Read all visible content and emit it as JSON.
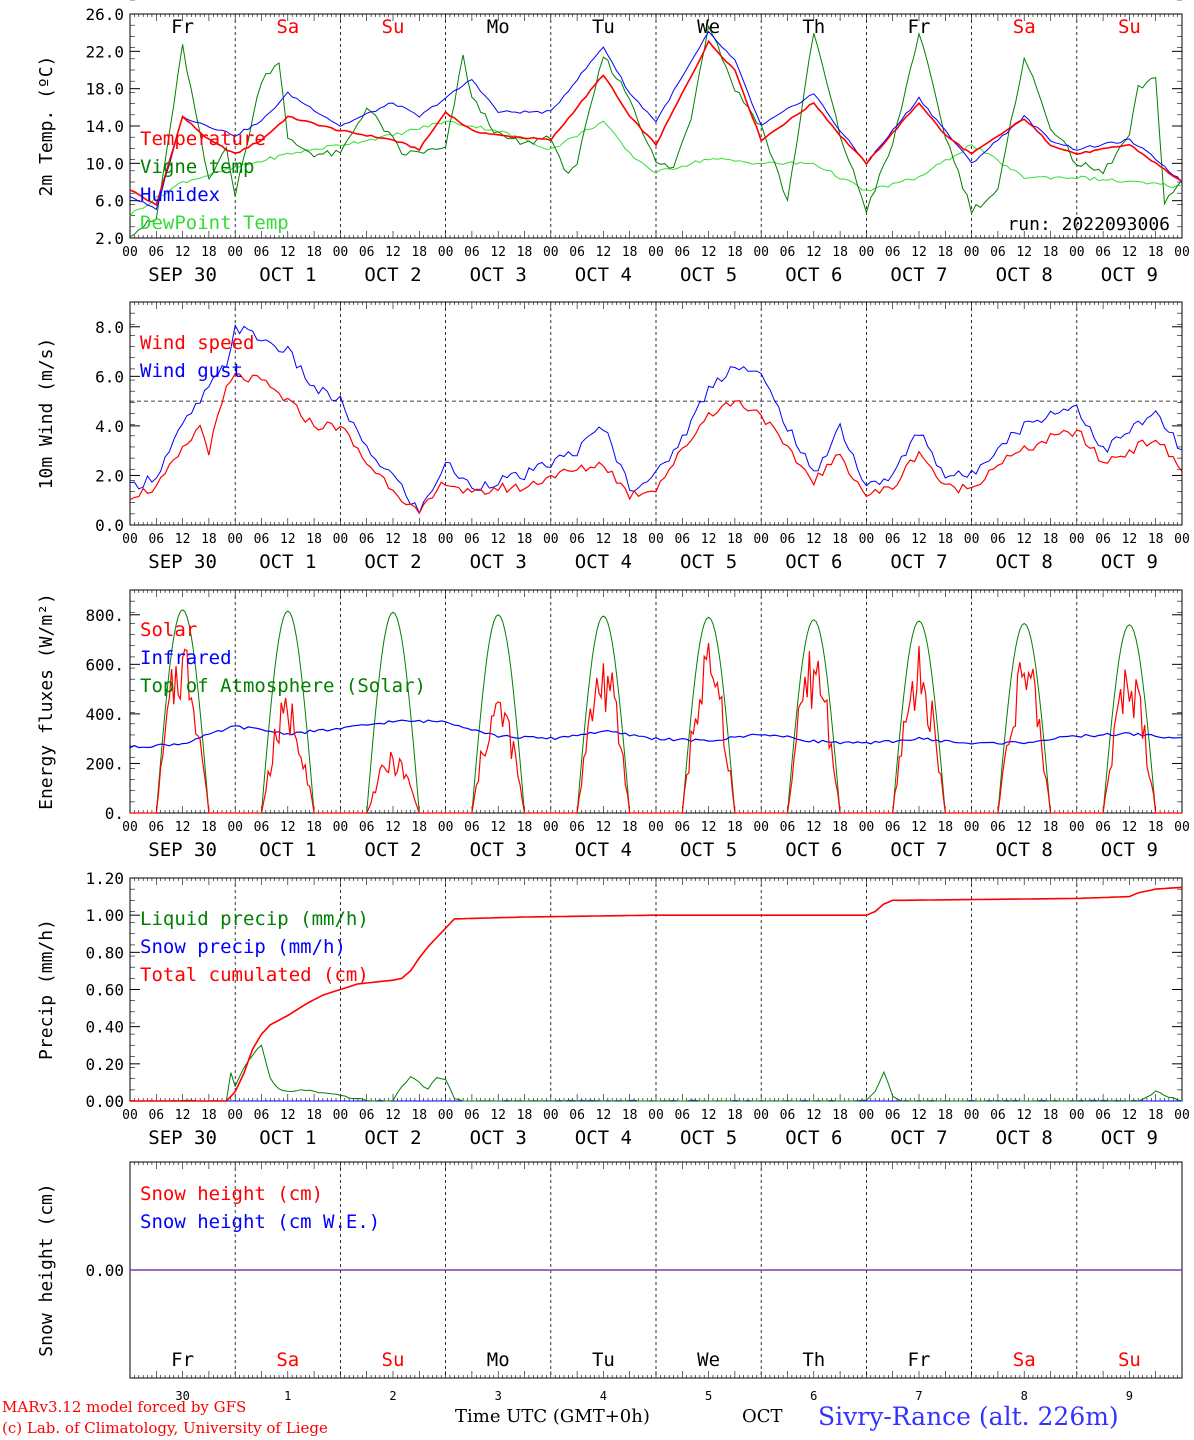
{
  "footer": {
    "model_line": "MARv3.12 model forced by GFS",
    "lab_line": "(c) Lab. of Climatology, University of Liege",
    "time_label": "Time UTC (GMT+0h)",
    "month_label": "OCT",
    "location": "Sivry-Rance (alt. 226m)"
  },
  "colors": {
    "red": "#ff0000",
    "green": "#008000",
    "blue": "#0000ff",
    "lightgreen": "#33dd33",
    "purple": "#7f3f9f",
    "black": "#000000"
  },
  "chart_data": [
    {
      "type": "line",
      "id": "temp",
      "ylabel": "2m Temp. (ºC)",
      "ylim": [
        2,
        26
      ],
      "yticks": [
        "2.0",
        "6.0",
        "10.0",
        "14.0",
        "18.0",
        "22.0",
        "26.0"
      ],
      "x_unit": "hours since Sep 30 00 UTC",
      "xlim": [
        0,
        240
      ],
      "x_hour_ticks": [
        "00",
        "06",
        "12",
        "18"
      ],
      "date_labels": [
        "SEP 30",
        "OCT  1",
        "OCT  2",
        "OCT  3",
        "OCT  4",
        "OCT  5",
        "OCT  6",
        "OCT  7",
        "OCT  8",
        "OCT  9"
      ],
      "weekdays": [
        "Fr",
        "Sa",
        "Su",
        "Mo",
        "Tu",
        "We",
        "Th",
        "Fr",
        "Sa",
        "Su"
      ],
      "weekday_colors": [
        "black",
        "red",
        "red",
        "black",
        "black",
        "black",
        "black",
        "black",
        "red",
        "red"
      ],
      "run_label": "run: 2022093006",
      "series": [
        {
          "name": "Temperature",
          "color": "red",
          "x": [
            0,
            6,
            12,
            18,
            24,
            30,
            36,
            48,
            60,
            66,
            72,
            78,
            84,
            96,
            108,
            114,
            120,
            132,
            138,
            144,
            156,
            162,
            168,
            180,
            186,
            192,
            204,
            210,
            216,
            228,
            234,
            240
          ],
          "y": [
            7.2,
            5.5,
            15.0,
            12.5,
            11.0,
            12.5,
            15.0,
            13.5,
            12.5,
            11.5,
            15.5,
            13.5,
            13.0,
            12.5,
            19.5,
            15.0,
            12.0,
            23.0,
            20.0,
            12.5,
            16.5,
            13.0,
            10.0,
            16.5,
            13.0,
            11.0,
            14.8,
            12.0,
            11.0,
            12.0,
            10.0,
            8.0
          ]
        },
        {
          "name": "Vigne temp",
          "color": "green",
          "x": [
            0,
            6,
            12,
            18,
            22,
            24,
            30,
            34,
            36,
            42,
            48,
            54,
            60,
            62,
            72,
            76,
            78,
            84,
            90,
            96,
            99,
            102,
            108,
            114,
            120,
            124,
            128,
            132,
            138,
            144,
            150,
            156,
            162,
            168,
            174,
            180,
            186,
            192,
            198,
            204,
            210,
            216,
            222,
            228,
            230,
            234,
            236,
            240
          ],
          "y": [
            2.5,
            4.0,
            22.5,
            8.0,
            12.0,
            6.5,
            19.0,
            21.0,
            12.5,
            11.0,
            11.0,
            16.0,
            12.5,
            11.0,
            11.5,
            21.5,
            17.0,
            13.0,
            12.0,
            13.0,
            9.0,
            10.0,
            21.5,
            17.0,
            10.0,
            9.5,
            15.0,
            25.0,
            18.0,
            14.0,
            6.0,
            24.0,
            13.0,
            5.0,
            12.0,
            24.0,
            13.0,
            5.0,
            7.0,
            21.5,
            14.0,
            10.0,
            9.0,
            13.0,
            18.0,
            19.0,
            6.0,
            8.0
          ]
        },
        {
          "name": "Humidex",
          "color": "blue",
          "x": [
            0,
            6,
            12,
            18,
            24,
            30,
            36,
            48,
            60,
            66,
            72,
            78,
            84,
            96,
            108,
            114,
            120,
            132,
            138,
            144,
            156,
            162,
            168,
            180,
            186,
            192,
            204,
            210,
            216,
            228,
            234,
            240
          ],
          "y": [
            6.5,
            5.0,
            15.0,
            14.0,
            13.0,
            14.5,
            17.5,
            14.0,
            16.5,
            15.0,
            17.0,
            19.0,
            15.5,
            15.5,
            22.5,
            17.5,
            14.5,
            24.0,
            21.0,
            14.0,
            17.5,
            13.5,
            10.0,
            17.0,
            13.5,
            10.0,
            15.0,
            12.5,
            11.5,
            12.5,
            10.5,
            8.0
          ]
        },
        {
          "name": "DewPoint Temp",
          "color": "lightgreen",
          "x": [
            0,
            12,
            24,
            36,
            48,
            60,
            72,
            84,
            96,
            108,
            114,
            120,
            132,
            144,
            156,
            168,
            180,
            192,
            204,
            216,
            228,
            240
          ],
          "y": [
            4.5,
            8.0,
            9.5,
            11.0,
            12.0,
            13.0,
            14.5,
            13.5,
            11.5,
            14.5,
            11.0,
            9.0,
            10.5,
            10.0,
            10.0,
            7.0,
            8.5,
            12.0,
            8.5,
            8.5,
            8.0,
            7.5
          ]
        }
      ],
      "legend_placement": "left"
    },
    {
      "type": "line",
      "id": "wind",
      "ylabel": "10m Wind (m/s)",
      "ylim": [
        0,
        9
      ],
      "yticks": [
        "0.0",
        "2.0",
        "4.0",
        "6.0",
        "8.0"
      ],
      "reference_line": 5,
      "xlim": [
        0,
        240
      ],
      "series": [
        {
          "name": "Wind speed",
          "color": "red",
          "x": [
            0,
            6,
            12,
            16,
            18,
            22,
            24,
            30,
            36,
            42,
            48,
            54,
            60,
            66,
            72,
            78,
            84,
            90,
            96,
            102,
            108,
            114,
            120,
            126,
            132,
            138,
            144,
            150,
            156,
            162,
            168,
            174,
            180,
            186,
            192,
            198,
            204,
            210,
            216,
            222,
            228,
            234,
            240
          ],
          "y": [
            1.2,
            1.5,
            3.0,
            4.0,
            3.0,
            5.5,
            6.0,
            5.8,
            5.0,
            4.0,
            4.0,
            2.5,
            1.5,
            0.4,
            1.8,
            1.2,
            1.5,
            1.5,
            2.0,
            2.2,
            2.5,
            1.2,
            1.5,
            3.0,
            4.5,
            5.0,
            4.5,
            3.0,
            1.8,
            2.8,
            1.2,
            1.5,
            3.0,
            1.5,
            1.5,
            2.5,
            3.0,
            3.5,
            3.8,
            2.5,
            3.0,
            3.5,
            2.2
          ]
        },
        {
          "name": "Wind gust",
          "color": "blue",
          "x": [
            0,
            6,
            12,
            18,
            22,
            24,
            30,
            36,
            42,
            48,
            54,
            60,
            66,
            72,
            78,
            84,
            90,
            96,
            102,
            108,
            114,
            120,
            126,
            132,
            138,
            144,
            150,
            156,
            162,
            168,
            174,
            180,
            186,
            192,
            198,
            204,
            210,
            216,
            222,
            228,
            234,
            240
          ],
          "y": [
            1.5,
            2.0,
            4.0,
            5.5,
            6.5,
            8.0,
            7.5,
            7.0,
            5.5,
            5.0,
            3.0,
            2.0,
            0.5,
            2.5,
            1.5,
            1.8,
            2.0,
            2.5,
            3.0,
            4.0,
            1.5,
            2.0,
            3.5,
            5.5,
            6.5,
            6.0,
            4.0,
            2.0,
            4.0,
            1.5,
            2.0,
            3.8,
            2.0,
            2.0,
            3.2,
            4.0,
            4.5,
            4.8,
            3.0,
            3.8,
            4.5,
            3.0
          ]
        }
      ],
      "legend_placement": "left"
    },
    {
      "type": "line",
      "id": "energy",
      "ylabel": "Energy fluxes (W/m²)",
      "ylim": [
        0,
        900
      ],
      "yticks": [
        "0.",
        "200.",
        "400.",
        "600.",
        "800."
      ],
      "xlim": [
        0,
        240
      ],
      "series": [
        {
          "name": "Solar",
          "color": "red",
          "day_peaks": [
            590,
            390,
            200,
            400,
            530,
            550,
            555,
            540,
            540,
            500
          ]
        },
        {
          "name": "Infrared",
          "color": "blue",
          "x": [
            0,
            12,
            24,
            36,
            48,
            60,
            72,
            84,
            96,
            108,
            120,
            132,
            144,
            156,
            168,
            180,
            192,
            204,
            216,
            228,
            240
          ],
          "y": [
            265,
            280,
            350,
            320,
            340,
            370,
            370,
            310,
            300,
            330,
            300,
            290,
            320,
            290,
            280,
            300,
            280,
            285,
            310,
            320,
            300
          ]
        },
        {
          "name": "Top of Atmosphere (Solar)",
          "color": "green",
          "day_peaks": [
            820,
            815,
            810,
            800,
            795,
            790,
            780,
            775,
            765,
            760
          ]
        }
      ],
      "legend_placement": "left"
    },
    {
      "type": "line",
      "id": "precip",
      "ylabel": "Precip (mm/h)",
      "ylim": [
        0,
        1.2
      ],
      "yticks": [
        "0.00",
        "0.20",
        "0.40",
        "0.60",
        "0.80",
        "1.00",
        "1.20"
      ],
      "xlim": [
        0,
        240
      ],
      "series": [
        {
          "name": "Liquid precip (mm/h)",
          "color": "green",
          "x": [
            0,
            22,
            23,
            24,
            26,
            28,
            30,
            32,
            34,
            36,
            40,
            44,
            48,
            52,
            56,
            60,
            62,
            64,
            66,
            68,
            70,
            72,
            74,
            76,
            78,
            90,
            160,
            168,
            170,
            172,
            174,
            176,
            178,
            180,
            220,
            230,
            232,
            234,
            236,
            240
          ],
          "y": [
            0,
            0,
            0.15,
            0.08,
            0.18,
            0.25,
            0.3,
            0.12,
            0.06,
            0.05,
            0.06,
            0.04,
            0.03,
            0.01,
            0,
            0,
            0.08,
            0.13,
            0.1,
            0.06,
            0.13,
            0.12,
            0.01,
            0,
            0,
            0,
            0,
            0,
            0.05,
            0.16,
            0.03,
            0,
            0,
            0,
            0,
            0,
            0.02,
            0.05,
            0.03,
            0
          ]
        },
        {
          "name": "Snow precip (mm/h)",
          "color": "blue",
          "x": [
            0,
            240
          ],
          "y": [
            0,
            0
          ]
        },
        {
          "name": "Total cumulated (cm)",
          "color": "red",
          "x": [
            0,
            22,
            24,
            26,
            28,
            30,
            32,
            36,
            40,
            44,
            48,
            52,
            56,
            60,
            62,
            64,
            66,
            68,
            70,
            72,
            74,
            90,
            120,
            168,
            170,
            172,
            174,
            176,
            216,
            228,
            230,
            234,
            240
          ],
          "y": [
            0,
            0,
            0.05,
            0.15,
            0.28,
            0.36,
            0.41,
            0.46,
            0.52,
            0.57,
            0.6,
            0.63,
            0.64,
            0.65,
            0.66,
            0.7,
            0.77,
            0.83,
            0.88,
            0.93,
            0.98,
            0.99,
            1.0,
            1.0,
            1.02,
            1.06,
            1.08,
            1.08,
            1.09,
            1.1,
            1.12,
            1.14,
            1.15
          ]
        }
      ],
      "legend_placement": "left"
    },
    {
      "type": "line",
      "id": "snow",
      "ylabel": "Snow height (cm)",
      "ylim": [
        -1,
        1
      ],
      "yticks": [
        "0.00"
      ],
      "xlim": [
        0,
        240
      ],
      "day_numbers": [
        "30",
        "1",
        "2",
        "3",
        "4",
        "5",
        "6",
        "7",
        "8",
        "9"
      ],
      "series": [
        {
          "name": "Snow height (cm)",
          "color": "red",
          "x": [
            0,
            240
          ],
          "y": [
            0,
            0
          ]
        },
        {
          "name": "Snow height (cm W.E.)",
          "color": "blue",
          "x": [
            0,
            240
          ],
          "y": [
            0,
            0
          ]
        }
      ],
      "legend_placement": "left"
    }
  ]
}
